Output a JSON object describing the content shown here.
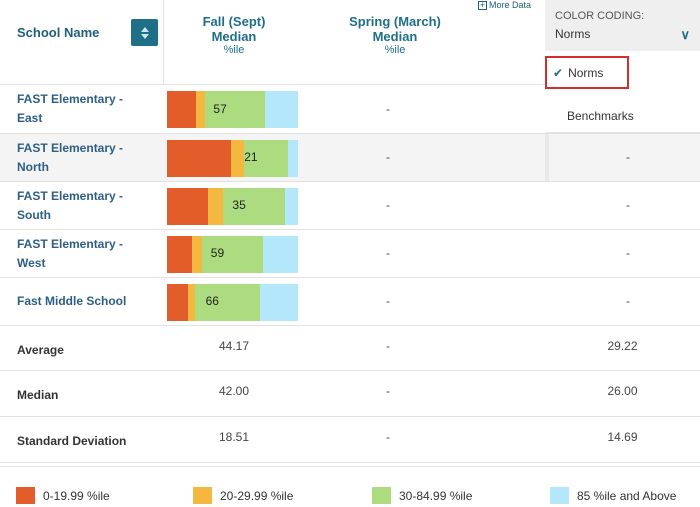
{
  "colors": {
    "band1": "#e35d2a",
    "band2": "#f4b740",
    "band3": "#addc80",
    "band4": "#b3e7f9",
    "accent": "#1f6f88"
  },
  "header": {
    "school_name": "School Name",
    "fall_title_1": "Fall (Sept)",
    "fall_title_2": "Median",
    "fall_sub": "%ile",
    "spring_title_1": "Spring (March)",
    "spring_title_2": "Median",
    "spring_sub": "%ile",
    "more_data": "More Data",
    "more_data_icon": "plus-square-icon",
    "sort_icon": "sort-icon"
  },
  "color_coding": {
    "label": "COLOR CODING:",
    "value": "Norms",
    "chevron": "∨",
    "options": [
      {
        "label": "Norms",
        "selected": true
      },
      {
        "label": "Benchmarks",
        "selected": false
      }
    ]
  },
  "schools": [
    {
      "name_1": "FAST Elementary -",
      "name_2": "East",
      "fall": "57",
      "spring": "-",
      "extra": "",
      "bands": [
        0.22,
        0.07,
        0.46,
        0.25
      ]
    },
    {
      "name_1": "FAST Elementary -",
      "name_2": "North",
      "fall": "21",
      "spring": "-",
      "extra": "-",
      "bands": [
        0.49,
        0.1,
        0.33,
        0.08
      ]
    },
    {
      "name_1": "FAST Elementary -",
      "name_2": "South",
      "fall": "35",
      "spring": "-",
      "extra": "-",
      "bands": [
        0.31,
        0.12,
        0.47,
        0.1
      ]
    },
    {
      "name_1": "FAST Elementary -",
      "name_2": "West",
      "fall": "59",
      "spring": "-",
      "extra": "-",
      "bands": [
        0.19,
        0.08,
        0.46,
        0.27
      ]
    },
    {
      "name_1": "Fast Middle School",
      "name_2": "",
      "fall": "66",
      "spring": "-",
      "extra": "-",
      "bands": [
        0.16,
        0.05,
        0.5,
        0.29
      ]
    }
  ],
  "stats": [
    {
      "label": "Average",
      "fall": "44.17",
      "spring": "-",
      "extra": "29.22"
    },
    {
      "label": "Median",
      "fall": "42.00",
      "spring": "-",
      "extra": "26.00"
    },
    {
      "label": "Standard Deviation",
      "fall": "18.51",
      "spring": "-",
      "extra": "14.69"
    }
  ],
  "legend": [
    {
      "label": "0-19.99 %ile",
      "color": "#e35d2a"
    },
    {
      "label": "20-29.99 %ile",
      "color": "#f4b740"
    },
    {
      "label": "30-84.99 %ile",
      "color": "#addc80"
    },
    {
      "label": "85 %ile and Above",
      "color": "#b3e7f9"
    }
  ]
}
